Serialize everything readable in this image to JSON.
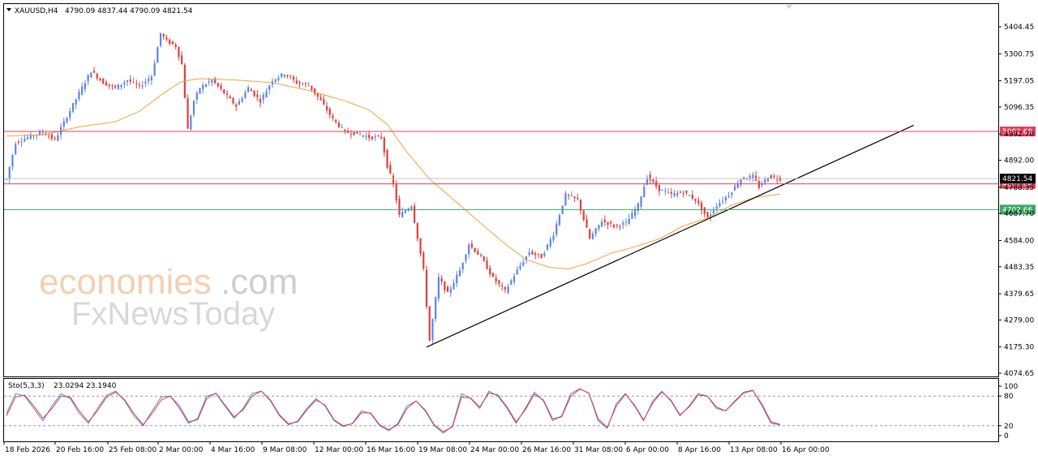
{
  "header": {
    "symbol": "XAUUSD,H4",
    "ohlc": "4790.09 4837.44 4790.09 4821.54"
  },
  "watermark": {
    "line1": "economies",
    "line1_suffix": ".com",
    "line2": "FxNewsToday"
  },
  "colors": {
    "bull": "#5b84e6",
    "bear": "#e23c3c",
    "ma": "#f1a23a",
    "resistance": "#e0405a",
    "support": "#3aa860",
    "trendline": "#000000",
    "stoch_main": "#5b84e6",
    "stoch_signal": "#e23c3c"
  },
  "chart_data": [
    {
      "type": "candlestick",
      "name": "price",
      "y_ticks": [
        "5404.45",
        "5300.75",
        "5197.05",
        "5096.35",
        "4992.70",
        "4892.00",
        "4788.35",
        "4687.70",
        "4584.00",
        "4483.35",
        "4379.65",
        "4279.00",
        "4175.30",
        "4074.65"
      ],
      "ylim": [
        4060,
        5440
      ],
      "x_ticks": [
        "18 Feb 2026",
        "20 Feb 16:00",
        "25 Feb 08:00",
        "2 Mar 00:00",
        "4 Mar 16:00",
        "9 Mar 08:00",
        "12 Mar 00:00",
        "16 Mar 16:00",
        "19 Mar 08:00",
        "24 Mar 00:00",
        "26 Mar 16:00",
        "31 Mar 08:00",
        "6 Apr 00:00",
        "8 Apr 16:00",
        "13 Apr 08:00",
        "16 Apr 00:00"
      ],
      "horizontal_levels": [
        {
          "label": "5002.69",
          "value": 5002.69,
          "kind": "resistance"
        },
        {
          "label": "4801.64",
          "value": 4801.64,
          "kind": "resistance"
        },
        {
          "label": "4702.66",
          "value": 4702.66,
          "kind": "support"
        },
        {
          "label": "4821.54",
          "value": 4821.54,
          "kind": "bid"
        }
      ],
      "trendline": {
        "from": {
          "index": 139,
          "value": 4175
        },
        "to": {
          "index": 268,
          "value": 4908
        }
      },
      "price_path": [
        [
          0,
          4820
        ],
        [
          3,
          4960
        ],
        [
          8,
          4985
        ],
        [
          12,
          5000
        ],
        [
          16,
          4970
        ],
        [
          20,
          5060
        ],
        [
          24,
          5150
        ],
        [
          28,
          5235
        ],
        [
          32,
          5190
        ],
        [
          36,
          5170
        ],
        [
          40,
          5200
        ],
        [
          44,
          5175
        ],
        [
          48,
          5215
        ],
        [
          51,
          5380
        ],
        [
          53,
          5350
        ],
        [
          56,
          5330
        ],
        [
          58,
          5260
        ],
        [
          60,
          5010
        ],
        [
          62,
          5120
        ],
        [
          64,
          5170
        ],
        [
          68,
          5200
        ],
        [
          72,
          5150
        ],
        [
          76,
          5100
        ],
        [
          80,
          5170
        ],
        [
          84,
          5120
        ],
        [
          88,
          5200
        ],
        [
          92,
          5225
        ],
        [
          96,
          5190
        ],
        [
          100,
          5180
        ],
        [
          104,
          5120
        ],
        [
          108,
          5050
        ],
        [
          112,
          5000
        ],
        [
          116,
          4995
        ],
        [
          120,
          4980
        ],
        [
          124,
          4980
        ],
        [
          126,
          4870
        ],
        [
          128,
          4800
        ],
        [
          130,
          4680
        ],
        [
          134,
          4720
        ],
        [
          138,
          4470
        ],
        [
          140,
          4200
        ],
        [
          143,
          4440
        ],
        [
          146,
          4380
        ],
        [
          150,
          4470
        ],
        [
          153,
          4570
        ],
        [
          157,
          4520
        ],
        [
          161,
          4440
        ],
        [
          165,
          4390
        ],
        [
          169,
          4470
        ],
        [
          173,
          4540
        ],
        [
          177,
          4520
        ],
        [
          181,
          4610
        ],
        [
          185,
          4760
        ],
        [
          189,
          4740
        ],
        [
          193,
          4590
        ],
        [
          197,
          4660
        ],
        [
          201,
          4640
        ],
        [
          205,
          4650
        ],
        [
          209,
          4720
        ],
        [
          212,
          4830
        ],
        [
          216,
          4780
        ],
        [
          220,
          4760
        ],
        [
          224,
          4770
        ],
        [
          228,
          4740
        ],
        [
          232,
          4670
        ],
        [
          235,
          4720
        ],
        [
          239,
          4760
        ],
        [
          243,
          4820
        ],
        [
          247,
          4830
        ],
        [
          249,
          4790
        ],
        [
          252,
          4830
        ],
        [
          256,
          4821
        ]
      ],
      "moving_average": [
        [
          0,
          4985
        ],
        [
          12,
          4990
        ],
        [
          24,
          5020
        ],
        [
          36,
          5040
        ],
        [
          44,
          5080
        ],
        [
          52,
          5150
        ],
        [
          58,
          5195
        ],
        [
          64,
          5205
        ],
        [
          76,
          5200
        ],
        [
          88,
          5190
        ],
        [
          100,
          5160
        ],
        [
          112,
          5120
        ],
        [
          120,
          5085
        ],
        [
          126,
          5030
        ],
        [
          132,
          4930
        ],
        [
          140,
          4820
        ],
        [
          148,
          4740
        ],
        [
          156,
          4660
        ],
        [
          164,
          4580
        ],
        [
          172,
          4510
        ],
        [
          180,
          4480
        ],
        [
          186,
          4475
        ],
        [
          192,
          4495
        ],
        [
          200,
          4535
        ],
        [
          208,
          4560
        ],
        [
          216,
          4590
        ],
        [
          224,
          4640
        ],
        [
          232,
          4670
        ],
        [
          240,
          4720
        ],
        [
          248,
          4750
        ],
        [
          256,
          4762
        ]
      ]
    },
    {
      "type": "line",
      "name": "Sto(5,3,3)",
      "values_label": "23.0294 23.1940",
      "y_ticks": [
        "100",
        "80",
        "20",
        "0"
      ],
      "levels": [
        80,
        20
      ],
      "ylim": [
        0,
        100
      ],
      "series": [
        {
          "name": "main",
          "values": [
            45,
            85,
            80,
            55,
            30,
            60,
            85,
            75,
            45,
            25,
            55,
            82,
            90,
            70,
            40,
            20,
            50,
            78,
            80,
            55,
            25,
            35,
            80,
            85,
            60,
            35,
            55,
            85,
            90,
            70,
            40,
            22,
            30,
            55,
            75,
            60,
            30,
            18,
            25,
            50,
            45,
            20,
            10,
            25,
            60,
            70,
            50,
            20,
            5,
            20,
            85,
            75,
            55,
            90,
            80,
            55,
            25,
            55,
            88,
            70,
            30,
            40,
            85,
            95,
            85,
            30,
            15,
            65,
            85,
            60,
            30,
            70,
            90,
            70,
            40,
            60,
            85,
            80,
            55,
            50,
            70,
            88,
            92,
            60,
            25,
            22
          ]
        },
        {
          "name": "signal",
          "values": [
            40,
            78,
            82,
            60,
            35,
            55,
            80,
            78,
            50,
            28,
            50,
            78,
            88,
            72,
            45,
            22,
            45,
            72,
            80,
            60,
            28,
            32,
            75,
            86,
            62,
            38,
            52,
            80,
            90,
            72,
            42,
            24,
            28,
            52,
            72,
            62,
            32,
            20,
            24,
            46,
            46,
            22,
            12,
            22,
            55,
            70,
            52,
            22,
            8,
            18,
            78,
            76,
            58,
            86,
            82,
            58,
            28,
            52,
            84,
            72,
            34,
            38,
            80,
            94,
            86,
            34,
            17,
            60,
            84,
            62,
            32,
            66,
            88,
            72,
            42,
            58,
            82,
            80,
            58,
            50,
            68,
            86,
            91,
            64,
            28,
            23
          ]
        }
      ]
    }
  ]
}
